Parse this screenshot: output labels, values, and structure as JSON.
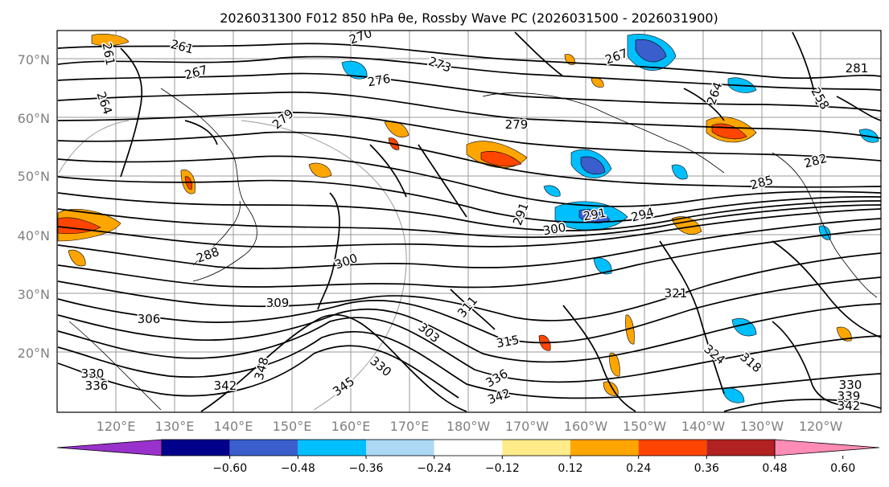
{
  "title": "2026031300 F012 850 hPa θe, Rossby Wave PC (2026031500 - 2026031900)",
  "map": {
    "lat_labels": [
      "70°N",
      "60°N",
      "50°N",
      "40°N",
      "30°N",
      "20°N"
    ],
    "lon_labels": [
      "120°E",
      "130°E",
      "140°E",
      "150°E",
      "160°E",
      "170°E",
      "180°W",
      "170°W",
      "160°W",
      "150°W",
      "140°W",
      "130°W",
      "120°W"
    ],
    "contour_labels": [
      "261",
      "270",
      "273",
      "267",
      "261",
      "281",
      "258",
      "264",
      "267",
      "276",
      "264",
      "279",
      "279",
      "282",
      "285",
      "291",
      "291",
      "294",
      "300",
      "288",
      "300",
      "309",
      "306",
      "303",
      "311",
      "315",
      "321",
      "324",
      "318",
      "330",
      "336",
      "342",
      "345",
      "330",
      "339",
      "342",
      "348",
      "330",
      "336",
      "342"
    ]
  },
  "colorbar": {
    "ticks": [
      "−0.60",
      "−0.48",
      "−0.36",
      "−0.24",
      "−0.12",
      "0.12",
      "0.24",
      "0.36",
      "0.48",
      "0.60"
    ],
    "colors": [
      "#9932cc",
      "#00008b",
      "#3a5fcd",
      "#00bfff",
      "#add8f5",
      "#ffffff",
      "#ffeb8a",
      "#ffa500",
      "#ff4500",
      "#b22222",
      "#ff8cb4"
    ]
  }
}
